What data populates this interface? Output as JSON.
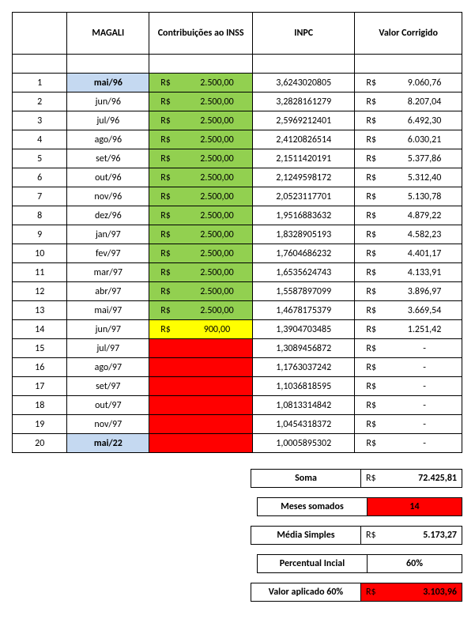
{
  "headers": {
    "idx": "",
    "magali": "MAGALI",
    "contrib": "Contribuições ao INSS",
    "inpc": "INPC",
    "valor": "Valor Corrigido"
  },
  "currency": "R$",
  "rows": [
    {
      "n": "1",
      "mag": "mai/96",
      "mag_bg": "blue",
      "c_bg": "green",
      "c_val": "2.500,00",
      "inpc": "3,6243020805",
      "vc": "9.060,76"
    },
    {
      "n": "2",
      "mag": "jun/96",
      "mag_bg": "",
      "c_bg": "green",
      "c_val": "2.500,00",
      "inpc": "3,2828161279",
      "vc": "8.207,04"
    },
    {
      "n": "3",
      "mag": "jul/96",
      "mag_bg": "",
      "c_bg": "green",
      "c_val": "2.500,00",
      "inpc": "2,5969212401",
      "vc": "6.492,30"
    },
    {
      "n": "4",
      "mag": "ago/96",
      "mag_bg": "",
      "c_bg": "green",
      "c_val": "2.500,00",
      "inpc": "2,4120826514",
      "vc": "6.030,21"
    },
    {
      "n": "5",
      "mag": "set/96",
      "mag_bg": "",
      "c_bg": "green",
      "c_val": "2.500,00",
      "inpc": "2,1511420191",
      "vc": "5.377,86"
    },
    {
      "n": "6",
      "mag": "out/96",
      "mag_bg": "",
      "c_bg": "green",
      "c_val": "2.500,00",
      "inpc": "2,1249598172",
      "vc": "5.312,40"
    },
    {
      "n": "7",
      "mag": "nov/96",
      "mag_bg": "",
      "c_bg": "green",
      "c_val": "2.500,00",
      "inpc": "2,0523117701",
      "vc": "5.130,78"
    },
    {
      "n": "8",
      "mag": "dez/96",
      "mag_bg": "",
      "c_bg": "green",
      "c_val": "2.500,00",
      "inpc": "1,9516883632",
      "vc": "4.879,22"
    },
    {
      "n": "9",
      "mag": "jan/97",
      "mag_bg": "",
      "c_bg": "green",
      "c_val": "2.500,00",
      "inpc": "1,8328905193",
      "vc": "4.582,23"
    },
    {
      "n": "10",
      "mag": "fev/97",
      "mag_bg": "",
      "c_bg": "green",
      "c_val": "2.500,00",
      "inpc": "1,7604686232",
      "vc": "4.401,17"
    },
    {
      "n": "11",
      "mag": "mar/97",
      "mag_bg": "",
      "c_bg": "green",
      "c_val": "2.500,00",
      "inpc": "1,6535624743",
      "vc": "4.133,91"
    },
    {
      "n": "12",
      "mag": "abr/97",
      "mag_bg": "",
      "c_bg": "green",
      "c_val": "2.500,00",
      "inpc": "1,5587897099",
      "vc": "3.896,97"
    },
    {
      "n": "13",
      "mag": "mai/97",
      "mag_bg": "",
      "c_bg": "green",
      "c_val": "2.500,00",
      "inpc": "1,4678175379",
      "vc": "3.669,54"
    },
    {
      "n": "14",
      "mag": "jun/97",
      "mag_bg": "",
      "c_bg": "yellow",
      "c_val": "900,00",
      "inpc": "1,3904703485",
      "vc": "1.251,42"
    },
    {
      "n": "15",
      "mag": "jul/97",
      "mag_bg": "",
      "c_bg": "red",
      "c_val": "",
      "inpc": "1,3089456872",
      "vc": "-"
    },
    {
      "n": "16",
      "mag": "ago/97",
      "mag_bg": "",
      "c_bg": "red",
      "c_val": "",
      "inpc": "1,1763037242",
      "vc": "-"
    },
    {
      "n": "17",
      "mag": "set/97",
      "mag_bg": "",
      "c_bg": "red",
      "c_val": "",
      "inpc": "1,1036818595",
      "vc": "-"
    },
    {
      "n": "18",
      "mag": "out/97",
      "mag_bg": "",
      "c_bg": "red",
      "c_val": "",
      "inpc": "1,0813314842",
      "vc": "-"
    },
    {
      "n": "19",
      "mag": "nov/97",
      "mag_bg": "",
      "c_bg": "red",
      "c_val": "",
      "inpc": "1,0454318372",
      "vc": "-"
    },
    {
      "n": "20",
      "mag": "mai/22",
      "mag_bg": "blue",
      "c_bg": "red",
      "c_val": "",
      "inpc": "1,0005895302",
      "vc": "-"
    }
  ],
  "summary": {
    "soma_label": "Soma",
    "soma_val": "72.425,81",
    "meses_label": "Meses somados",
    "meses_val": "14",
    "media_label": "Média Simples",
    "media_val": "5.173,27",
    "perc_label": "Percentual Incial",
    "perc_val": "60%",
    "aplicado_label": "Valor aplicado 60%",
    "aplicado_val": "3.103,96"
  }
}
